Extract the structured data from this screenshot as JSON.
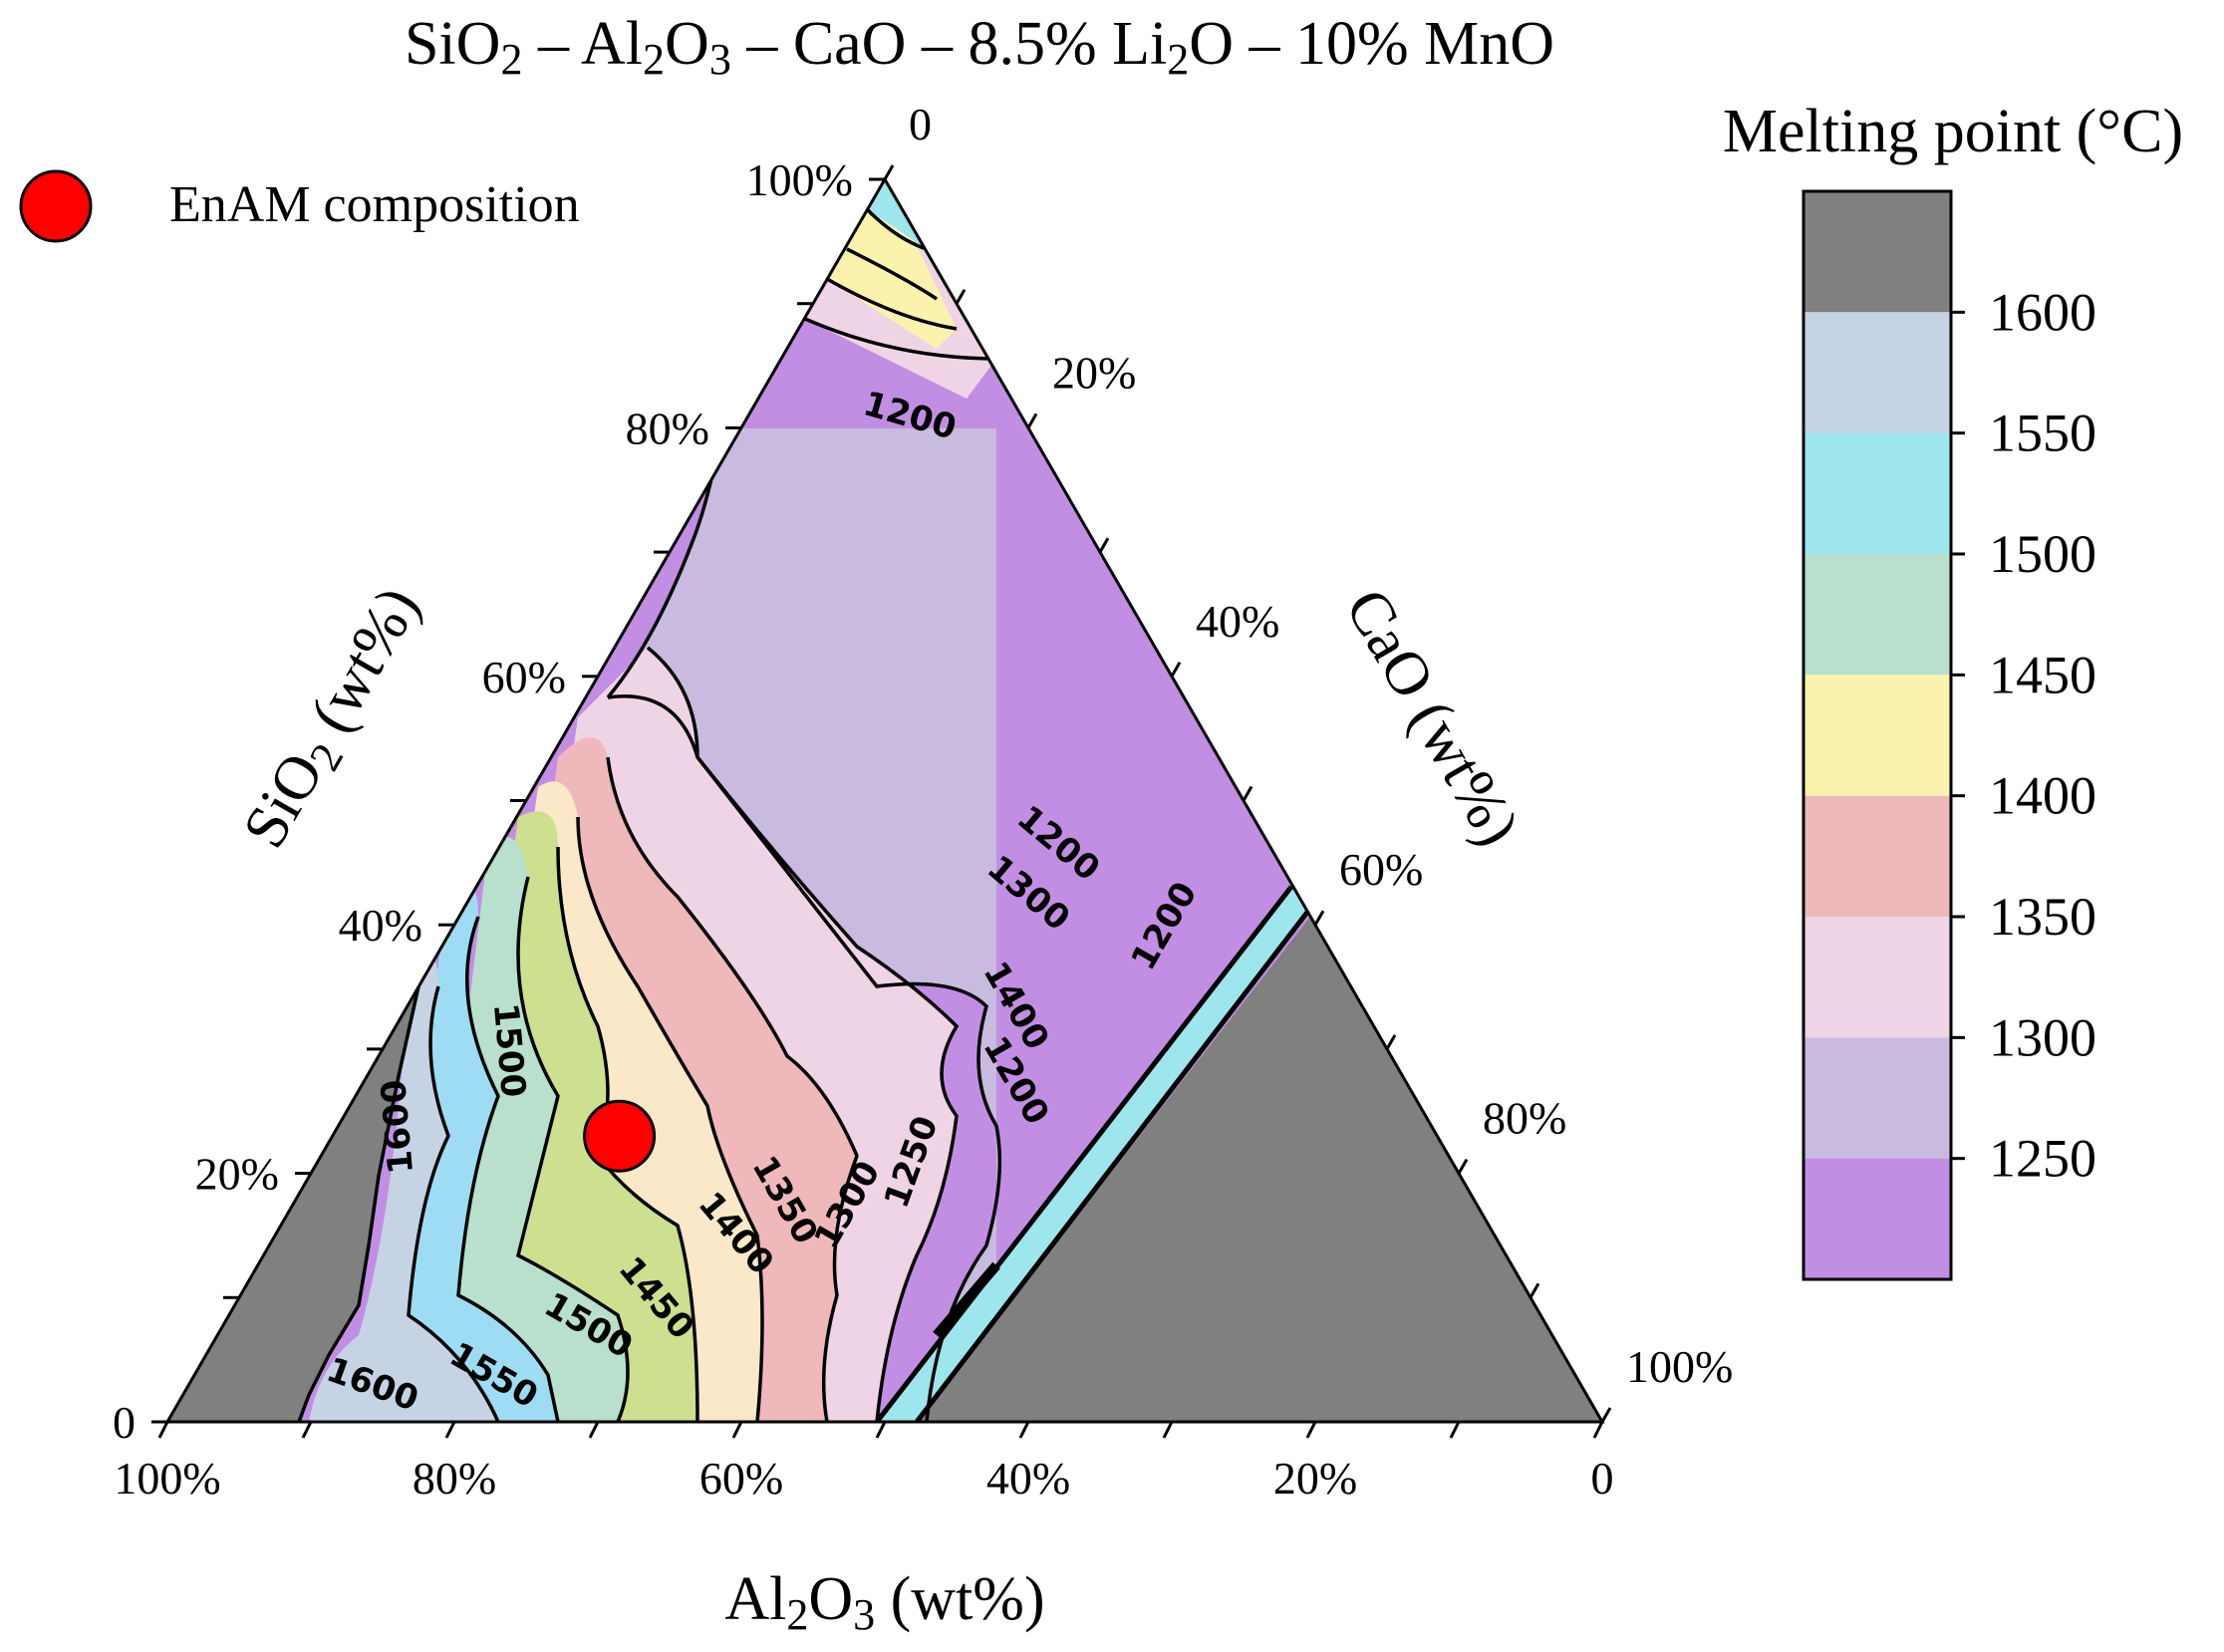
{
  "chart_data": {
    "type": "ternary-contour",
    "title": {
      "segments": [
        {
          "text": "SiO",
          "sub": false
        },
        {
          "text": "2",
          "sub": true
        },
        {
          "text": " – Al",
          "sub": false
        },
        {
          "text": "2",
          "sub": true
        },
        {
          "text": "O",
          "sub": false
        },
        {
          "text": "3",
          "sub": true
        },
        {
          "text": " – CaO – 8.5% Li",
          "sub": false
        },
        {
          "text": "2",
          "sub": true
        },
        {
          "text": "O – 10% MnO",
          "sub": false
        }
      ]
    },
    "axes": {
      "sio2": {
        "label_main": "SiO",
        "label_sub": "2",
        "label_tail": " (wt%)",
        "ticks": [
          "0",
          "20%",
          "40%",
          "60%",
          "80%",
          "100%"
        ]
      },
      "cao": {
        "label": "CaO (wt%)",
        "ticks": [
          "0",
          "20%",
          "40%",
          "60%",
          "80%",
          "100%"
        ]
      },
      "al2o3": {
        "label_a": "Al",
        "sub_a": "2",
        "label_b": "O",
        "sub_b": "3",
        "label_tail": " (wt%)",
        "ticks": [
          "100%",
          "80%",
          "60%",
          "40%",
          "20%",
          "0"
        ]
      }
    },
    "legend": {
      "marker_label": "EnAM composition",
      "marker_color": "#ff0000"
    },
    "colorbar": {
      "title": "Melting point (°C)",
      "bands": [
        {
          "color": "#808080"
        },
        {
          "color": "#c6d3e4"
        },
        {
          "color": "#9ee6ee"
        },
        {
          "color": "#b8e0cc"
        },
        {
          "color": "#fbf3ad"
        },
        {
          "color": "#efb8bb"
        },
        {
          "color": "#efd4e6"
        },
        {
          "color": "#c8bbdf"
        },
        {
          "color": "#c28ee3"
        }
      ],
      "ticks": [
        "1600",
        "1550",
        "1500",
        "1450",
        "1400",
        "1350",
        "1300",
        "1250"
      ]
    },
    "enam_point": {
      "sio2": 23,
      "cao": 20,
      "al2o3": 57
    },
    "contour_labels": [
      {
        "text": "1200"
      },
      {
        "text": "1200"
      },
      {
        "text": "1300"
      },
      {
        "text": "1400"
      },
      {
        "text": "1500"
      },
      {
        "text": "1600"
      },
      {
        "text": "1200"
      },
      {
        "text": "1200"
      },
      {
        "text": "1250"
      },
      {
        "text": "1300"
      },
      {
        "text": "1350"
      },
      {
        "text": "1400"
      },
      {
        "text": "1450"
      },
      {
        "text": "1500"
      },
      {
        "text": "1550"
      },
      {
        "text": "1600"
      }
    ]
  }
}
